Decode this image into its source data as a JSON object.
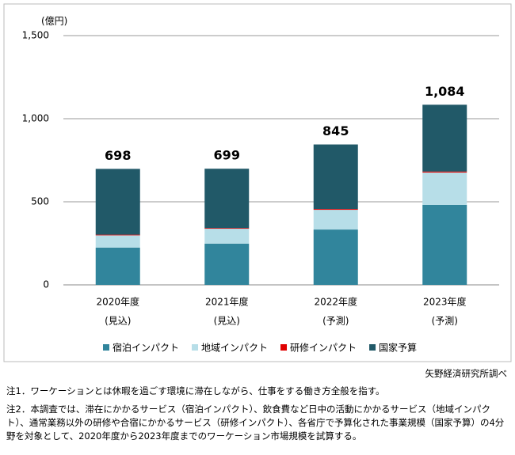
{
  "chart_data": {
    "type": "stacked_bar",
    "y_label": "(億円)",
    "categories": [
      "2020年度",
      "2021年度",
      "2022年度",
      "2023年度"
    ],
    "category_notes": [
      "(見込)",
      "(見込)",
      "(予測)",
      "(予測)"
    ],
    "series": [
      {
        "name": "宿泊インパクト",
        "color": "#31859c",
        "values": [
          224,
          248,
          333,
          481
        ]
      },
      {
        "name": "地域インパクト",
        "color": "#b7dee8",
        "values": [
          74,
          90,
          119,
          195
        ]
      },
      {
        "name": "研修インパクト",
        "color": "#e00000",
        "values": [
          4,
          4,
          5,
          6
        ]
      },
      {
        "name": "国家予算",
        "color": "#215968",
        "values": [
          396,
          357,
          388,
          402
        ]
      }
    ],
    "totals": [
      698,
      699,
      845,
      1084
    ],
    "total_labels": [
      "698",
      "699",
      "845",
      "1,084"
    ],
    "ylim": [
      0,
      1500
    ],
    "yticks": [
      0,
      500,
      {
        "value": 1000,
        "label": "1,000"
      },
      {
        "value": 1500,
        "label": "1,500"
      }
    ],
    "grid": true,
    "legend": "bottom"
  },
  "source": "矢野経済研究所調べ",
  "notes": [
    "注1．ワーケーションとは休暇を過ごす環境に滞在しながら、仕事をする働き方全般を指す。",
    "注2．本調査では、滞在にかかるサービス（宿泊インパクト）、飲食費など日中の活動にかかるサービス（地域インパクト）、通常業務以外の研修や合宿にかかるサービス（研修インパクト）、各省庁で予算化された事業規模（国家予算）の4分野を対象として、2020年度から2023年度までのワーケーション市場規模を試算する。"
  ]
}
